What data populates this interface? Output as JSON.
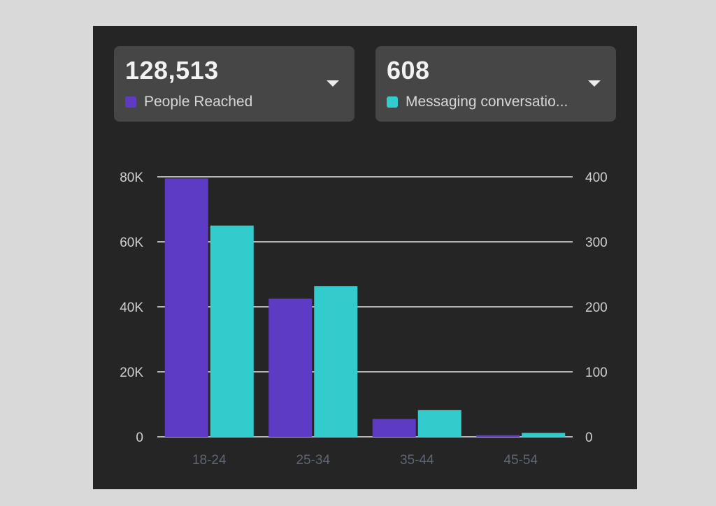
{
  "cards": [
    {
      "value": "128,513",
      "label": "People Reached",
      "color": "#5e3bc4",
      "icon": "chevron-down-icon"
    },
    {
      "value": "608",
      "label": "Messaging conversatio...",
      "color": "#33cccc",
      "icon": "chevron-down-icon"
    }
  ],
  "chart_data": {
    "type": "bar",
    "categories": [
      "18-24",
      "25-34",
      "35-44",
      "45-54"
    ],
    "series": [
      {
        "name": "People Reached",
        "axis": "left",
        "color": "#5e3bc4",
        "values": [
          79500,
          42500,
          5500,
          500
        ]
      },
      {
        "name": "Messaging conversatio...",
        "axis": "right",
        "color": "#33cccc",
        "values": [
          325,
          232,
          41,
          6
        ]
      }
    ],
    "y_left": {
      "ticks": [
        "0",
        "20K",
        "40K",
        "60K",
        "80K"
      ],
      "range": [
        0,
        80000
      ]
    },
    "y_right": {
      "ticks": [
        "0",
        "100",
        "200",
        "300",
        "400"
      ],
      "range": [
        0,
        400
      ]
    },
    "grid": true
  }
}
